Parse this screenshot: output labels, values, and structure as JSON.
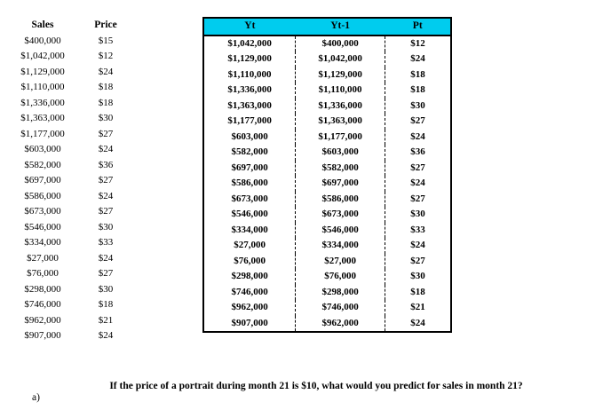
{
  "left_table": {
    "headers": [
      "Sales",
      "Price"
    ],
    "rows": [
      [
        "$400,000",
        "$15"
      ],
      [
        "$1,042,000",
        "$12"
      ],
      [
        "$1,129,000",
        "$24"
      ],
      [
        "$1,110,000",
        "$18"
      ],
      [
        "$1,336,000",
        "$18"
      ],
      [
        "$1,363,000",
        "$30"
      ],
      [
        "$1,177,000",
        "$27"
      ],
      [
        "$603,000",
        "$24"
      ],
      [
        "$582,000",
        "$36"
      ],
      [
        "$697,000",
        "$27"
      ],
      [
        "$586,000",
        "$24"
      ],
      [
        "$673,000",
        "$27"
      ],
      [
        "$546,000",
        "$30"
      ],
      [
        "$334,000",
        "$33"
      ],
      [
        "$27,000",
        "$24"
      ],
      [
        "$76,000",
        "$27"
      ],
      [
        "$298,000",
        "$30"
      ],
      [
        "$746,000",
        "$18"
      ],
      [
        "$962,000",
        "$21"
      ],
      [
        "$907,000",
        "$24"
      ]
    ]
  },
  "right_table": {
    "headers": [
      "Yt",
      "Yt-1",
      "Pt"
    ],
    "header_bg": "#00CCEE",
    "border_color": "#000000",
    "rows": [
      [
        "$1,042,000",
        "$400,000",
        "$12"
      ],
      [
        "$1,129,000",
        "$1,042,000",
        "$24"
      ],
      [
        "$1,110,000",
        "$1,129,000",
        "$18"
      ],
      [
        "$1,336,000",
        "$1,110,000",
        "$18"
      ],
      [
        "$1,363,000",
        "$1,336,000",
        "$30"
      ],
      [
        "$1,177,000",
        "$1,363,000",
        "$27"
      ],
      [
        "$603,000",
        "$1,177,000",
        "$24"
      ],
      [
        "$582,000",
        "$603,000",
        "$36"
      ],
      [
        "$697,000",
        "$582,000",
        "$27"
      ],
      [
        "$586,000",
        "$697,000",
        "$24"
      ],
      [
        "$673,000",
        "$586,000",
        "$27"
      ],
      [
        "$546,000",
        "$673,000",
        "$30"
      ],
      [
        "$334,000",
        "$546,000",
        "$33"
      ],
      [
        "$27,000",
        "$334,000",
        "$24"
      ],
      [
        "$76,000",
        "$27,000",
        "$27"
      ],
      [
        "$298,000",
        "$76,000",
        "$30"
      ],
      [
        "$746,000",
        "$298,000",
        "$18"
      ],
      [
        "$962,000",
        "$746,000",
        "$21"
      ],
      [
        "$907,000",
        "$962,000",
        "$24"
      ]
    ]
  },
  "question": {
    "label": "a)",
    "text": "If the price of a portrait during month 21 is $10, what would you predict for sales in month 21?"
  }
}
